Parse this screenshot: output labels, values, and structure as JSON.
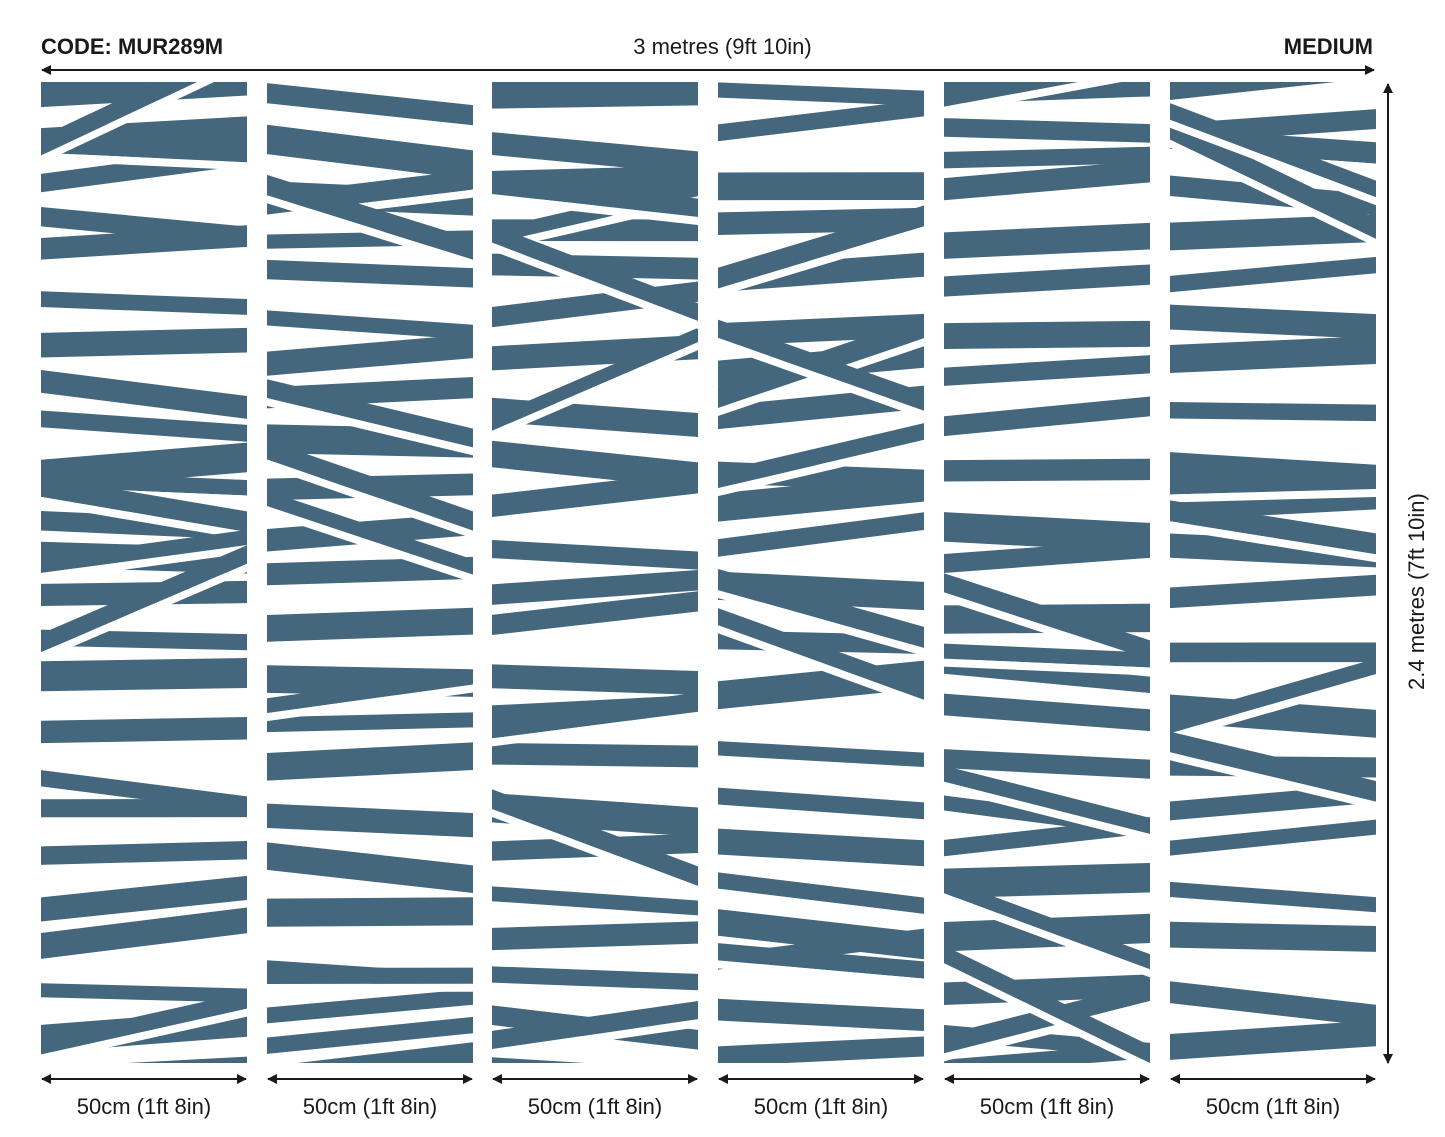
{
  "header": {
    "code": "CODE: MUR289M",
    "width_label": "3 metres (9ft 10in)",
    "size_label": "MEDIUM"
  },
  "side": {
    "height_label": "2.4 metres (7ft 10in)"
  },
  "colors": {
    "stripe": "#44677d",
    "background": "#ffffff",
    "text": "#1a1a1a"
  },
  "panels": [
    {
      "label": "50cm (1ft 8in)"
    },
    {
      "label": "50cm (1ft 8in)"
    },
    {
      "label": "50cm (1ft 8in)"
    },
    {
      "label": "50cm (1ft 8in)"
    },
    {
      "label": "50cm (1ft 8in)"
    },
    {
      "label": "50cm (1ft 8in)"
    }
  ]
}
